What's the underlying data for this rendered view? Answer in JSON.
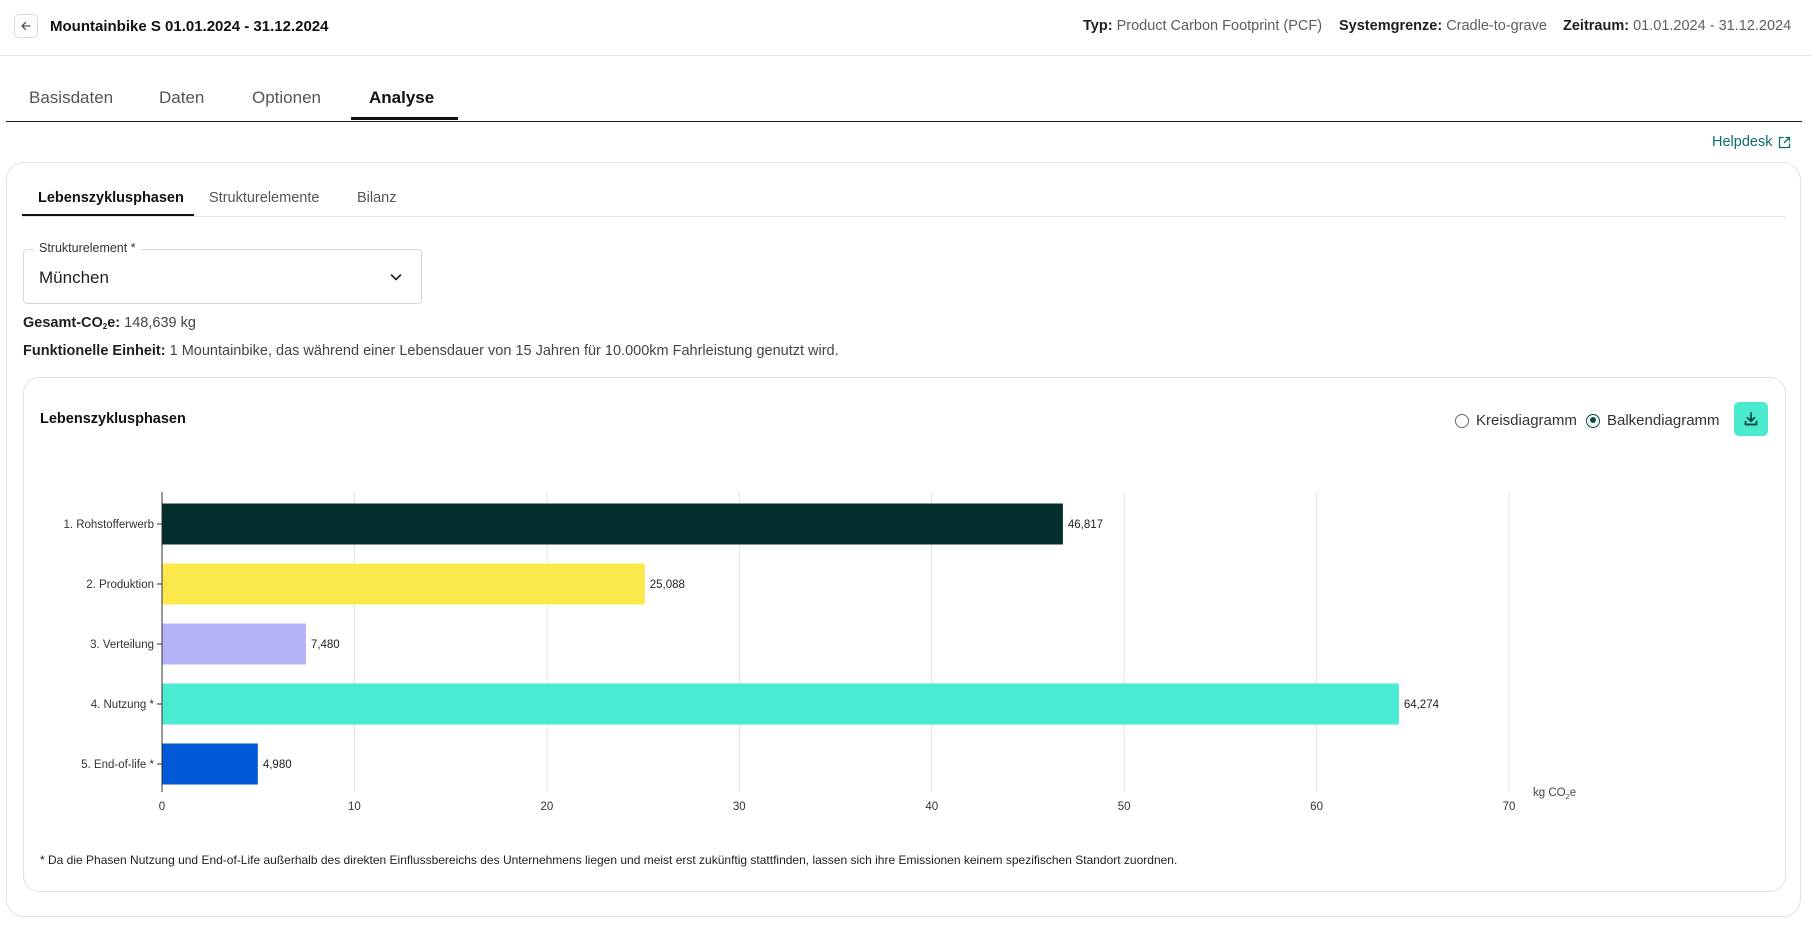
{
  "header": {
    "title": "Mountainbike S 01.01.2024 - 31.12.2024",
    "type_label": "Typ:",
    "type_value": "Product Carbon Footprint (PCF)",
    "boundary_label": "Systemgrenze:",
    "boundary_value": "Cradle-to-grave",
    "period_label": "Zeitraum:",
    "period_value": "01.01.2024 - 31.12.2024"
  },
  "main_tabs": [
    {
      "label": "Basisdaten"
    },
    {
      "label": "Daten"
    },
    {
      "label": "Optionen"
    },
    {
      "label": "Analyse",
      "active": true
    }
  ],
  "helpdesk_label": "Helpdesk",
  "sub_tabs": [
    {
      "label": "Lebenszyklusphasen",
      "active": true
    },
    {
      "label": "Strukturelemente"
    },
    {
      "label": "Bilanz"
    }
  ],
  "select": {
    "label": "Strukturelement *",
    "value": "München"
  },
  "summary": {
    "total_label_prefix": "Gesamt-CO",
    "total_label_sub": "2",
    "total_label_suffix": "e:",
    "total_value": "148,639 kg",
    "unit_label": "Funktionelle Einheit:",
    "unit_value": "1 Mountainbike, das während einer Lebensdauer von 15 Jahren für 10.000km Fahrleistung genutzt wird."
  },
  "chart_card": {
    "title": "Lebenszyklusphasen",
    "radio_pie": "Kreisdiagramm",
    "radio_bar": "Balkendiagramm",
    "selected": "Balkendiagramm",
    "footnote": "* Da die Phasen Nutzung und End-of-Life außerhalb des direkten Einflussbereichs des Unternehmens liegen und meist erst zukünftig stattfinden, lassen sich ihre Emissionen keinem spezifischen Standort zuordnen."
  },
  "chart_data": {
    "type": "bar",
    "orientation": "horizontal",
    "categories": [
      "1. Rohstofferwerb",
      "2. Produktion",
      "3. Verteilung",
      "4. Nutzung *",
      "5. End-of-life *"
    ],
    "values": [
      46.817,
      25.088,
      7.48,
      64.274,
      4.98
    ],
    "value_labels": [
      "46,817",
      "25,088",
      "7,480",
      "64,274",
      "4,980"
    ],
    "colors": [
      "#032e2e",
      "#fbe84a",
      "#b4b3fa",
      "#4aead3",
      "#0059d6"
    ],
    "xticks": [
      0,
      10,
      20,
      30,
      40,
      50,
      60,
      70
    ],
    "xlim": [
      0,
      70
    ],
    "xlabel_prefix": "kg CO",
    "xlabel_sub": "2",
    "xlabel_suffix": "e",
    "grid": true
  }
}
